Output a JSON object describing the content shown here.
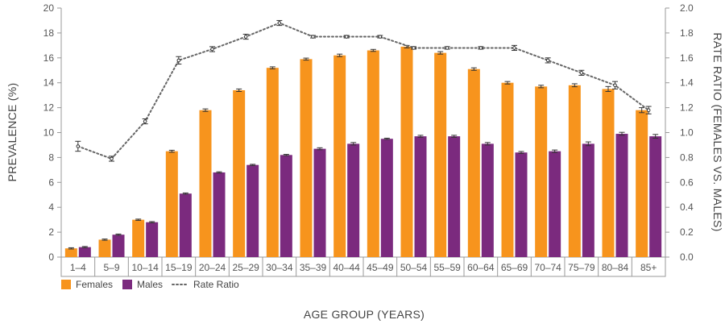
{
  "chart_data": {
    "type": "bar",
    "title": "",
    "xlabel": "AGE GROUP (YEARS)",
    "ylabel": "PREVALENCE (%)",
    "y2label": "RATE RATIO (FEMALES VS. MALES)",
    "ylim": [
      0,
      20
    ],
    "y2lim": [
      0,
      2.0
    ],
    "yticks": [
      "0",
      "2",
      "4",
      "6",
      "8",
      "10",
      "12",
      "14",
      "16",
      "18",
      "20"
    ],
    "y2ticks": [
      "0.0",
      "0.2",
      "0.4",
      "0.6",
      "0.8",
      "1.0",
      "1.2",
      "1.4",
      "1.6",
      "1.8",
      "2.0"
    ],
    "categories": [
      "1–4",
      "5–9",
      "10–14",
      "15–19",
      "20–24",
      "25–29",
      "30–34",
      "35–39",
      "40–44",
      "45–49",
      "50–54",
      "55–59",
      "60–64",
      "65–69",
      "70–74",
      "75–79",
      "80–84",
      "85+"
    ],
    "series": [
      {
        "name": "Females",
        "kind": "bar",
        "axis": "left",
        "color": "#F7941D",
        "values": [
          0.7,
          1.4,
          3.0,
          8.5,
          11.8,
          13.4,
          15.2,
          15.9,
          16.2,
          16.6,
          16.9,
          16.4,
          15.1,
          14.0,
          13.7,
          13.8,
          13.5,
          11.8
        ],
        "errors": [
          0.05,
          0.05,
          0.05,
          0.08,
          0.1,
          0.1,
          0.08,
          0.08,
          0.1,
          0.08,
          0.1,
          0.1,
          0.1,
          0.1,
          0.1,
          0.12,
          0.2,
          0.2
        ]
      },
      {
        "name": "Males",
        "kind": "bar",
        "axis": "left",
        "color": "#7B2A7E",
        "values": [
          0.8,
          1.8,
          2.8,
          5.1,
          6.8,
          7.4,
          8.2,
          8.7,
          9.1,
          9.5,
          9.7,
          9.7,
          9.1,
          8.4,
          8.5,
          9.1,
          9.9,
          9.7
        ],
        "errors": [
          0.05,
          0.05,
          0.05,
          0.05,
          0.05,
          0.05,
          0.05,
          0.08,
          0.1,
          0.05,
          0.08,
          0.08,
          0.1,
          0.08,
          0.1,
          0.15,
          0.12,
          0.15
        ]
      },
      {
        "name": "Rate Ratio",
        "kind": "line",
        "axis": "right",
        "color": "#666666",
        "values": [
          0.89,
          0.79,
          1.09,
          1.58,
          1.67,
          1.77,
          1.88,
          1.77,
          1.77,
          1.77,
          1.68,
          1.68,
          1.68,
          1.68,
          1.58,
          1.48,
          1.38,
          1.18
        ],
        "errors": [
          0.04,
          0.02,
          0.02,
          0.03,
          0.02,
          0.02,
          0.02,
          0.01,
          0.01,
          0.01,
          0.01,
          0.01,
          0.01,
          0.02,
          0.02,
          0.02,
          0.03,
          0.03
        ]
      }
    ],
    "legend": {
      "position": "bottom-left",
      "items": [
        "Females",
        "Males",
        "Rate Ratio"
      ]
    },
    "grid": false
  }
}
